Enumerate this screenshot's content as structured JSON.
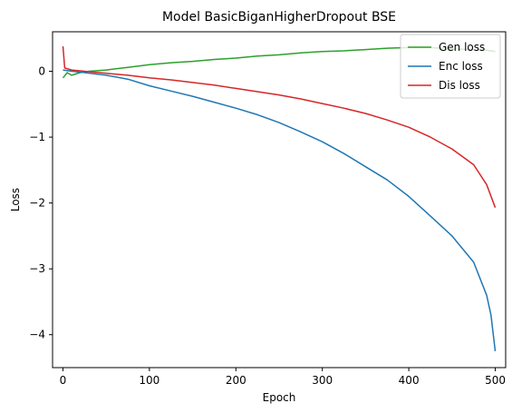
{
  "chart_data": {
    "type": "line",
    "title": "Model BasicBiganHigherDropout BSE",
    "xlabel": "Epoch",
    "ylabel": "Loss",
    "xlim": [
      -12,
      512
    ],
    "ylim": [
      -4.5,
      0.6
    ],
    "xticks": [
      0,
      100,
      200,
      300,
      400,
      500
    ],
    "yticks": [
      0,
      -1,
      -2,
      -3,
      -4
    ],
    "ytick_labels": [
      "0",
      "−1",
      "−2",
      "−3",
      "−4"
    ],
    "grid": false,
    "legend_position": "top-right",
    "series": [
      {
        "name": "Gen loss",
        "color": "#2ca02c",
        "points": [
          [
            0,
            -0.1
          ],
          [
            5,
            -0.02
          ],
          [
            10,
            -0.06
          ],
          [
            20,
            -0.02
          ],
          [
            30,
            0.0
          ],
          [
            50,
            0.02
          ],
          [
            75,
            0.06
          ],
          [
            100,
            0.1
          ],
          [
            125,
            0.13
          ],
          [
            150,
            0.15
          ],
          [
            175,
            0.18
          ],
          [
            200,
            0.2
          ],
          [
            225,
            0.23
          ],
          [
            250,
            0.25
          ],
          [
            275,
            0.28
          ],
          [
            300,
            0.3
          ],
          [
            325,
            0.31
          ],
          [
            350,
            0.33
          ],
          [
            375,
            0.35
          ],
          [
            400,
            0.36
          ],
          [
            425,
            0.36
          ],
          [
            450,
            0.34
          ],
          [
            475,
            0.33
          ],
          [
            490,
            0.32
          ],
          [
            500,
            0.3
          ]
        ]
      },
      {
        "name": "Enc loss",
        "color": "#1f77b4",
        "points": [
          [
            0,
            0.02
          ],
          [
            10,
            0.0
          ],
          [
            25,
            -0.02
          ],
          [
            50,
            -0.06
          ],
          [
            75,
            -0.12
          ],
          [
            100,
            -0.22
          ],
          [
            125,
            -0.3
          ],
          [
            150,
            -0.38
          ],
          [
            175,
            -0.47
          ],
          [
            200,
            -0.56
          ],
          [
            225,
            -0.66
          ],
          [
            250,
            -0.78
          ],
          [
            275,
            -0.92
          ],
          [
            300,
            -1.07
          ],
          [
            325,
            -1.25
          ],
          [
            350,
            -1.45
          ],
          [
            375,
            -1.65
          ],
          [
            400,
            -1.9
          ],
          [
            425,
            -2.2
          ],
          [
            450,
            -2.5
          ],
          [
            475,
            -2.9
          ],
          [
            490,
            -3.4
          ],
          [
            495,
            -3.7
          ],
          [
            500,
            -4.25
          ]
        ]
      },
      {
        "name": "Dis loss",
        "color": "#d62728",
        "points": [
          [
            0,
            0.38
          ],
          [
            2,
            0.05
          ],
          [
            10,
            0.02
          ],
          [
            25,
            0.0
          ],
          [
            50,
            -0.03
          ],
          [
            75,
            -0.06
          ],
          [
            100,
            -0.1
          ],
          [
            125,
            -0.13
          ],
          [
            150,
            -0.17
          ],
          [
            175,
            -0.21
          ],
          [
            200,
            -0.26
          ],
          [
            225,
            -0.31
          ],
          [
            250,
            -0.36
          ],
          [
            275,
            -0.42
          ],
          [
            300,
            -0.49
          ],
          [
            325,
            -0.56
          ],
          [
            350,
            -0.64
          ],
          [
            375,
            -0.74
          ],
          [
            400,
            -0.85
          ],
          [
            425,
            -1.0
          ],
          [
            450,
            -1.18
          ],
          [
            475,
            -1.42
          ],
          [
            490,
            -1.72
          ],
          [
            500,
            -2.07
          ]
        ]
      }
    ]
  }
}
